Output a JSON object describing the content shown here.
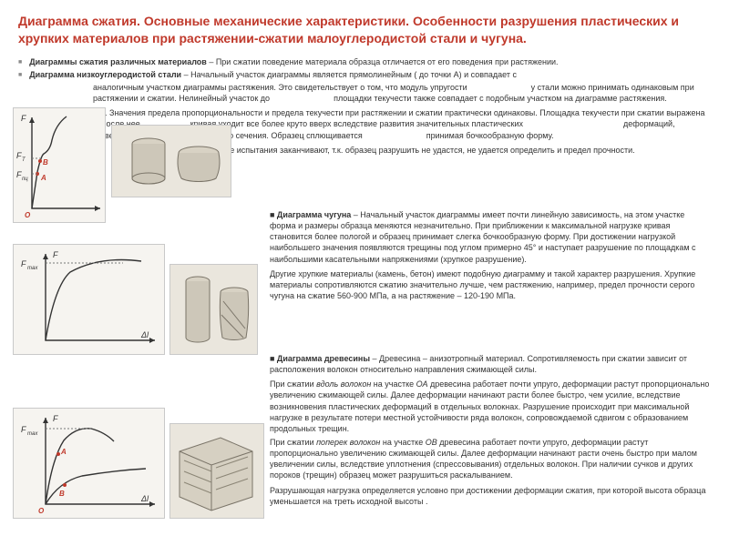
{
  "title": "Диаграмма сжатия. Основные механические характеристики. Особенности разрушения пластических и хрупких материалов при растяжении-сжатии малоуглеродистой стали и чугуна.",
  "p1_lead": "Диаграммы сжатия различных материалов",
  "p1_rest": " – При сжатии поведение материала образца отличается от его поведения при растяжении.",
  "p2_lead": "Диаграмма низкоуглеродистой стали",
  "p2_rest": " – Начальный участок диаграммы является прямолинейным ( до точки А) и совпадает с ",
  "body1": "аналогичным участком диаграммы растяжения. Это свидетельствует о том, что модуль упругости                            у стали можно принимать одинаковым при растяжении и сжатии. Нелинейный участок до                            площадки текучести также совпадает с подобным участком на диаграмме растяжения.",
  "body2": "                          . Значения предела пропорциональности и предела текучести при растяжении и сжатии практически одинаковы. Площадка текучести при сжатии выражена очень слабо и после нее                      кривая уходит все более круто вверх вследствие развития значительных пластических                                            деформаций, приводящих к увеличению площади поперечного сечения. Образец сплющивается                            принимая бочкообразную форму.",
  "body3": "При определенной нагрузке испытания заканчивают, т.к. образец разрушить не удастся, не удается определить и предел прочности.",
  "chugun_lead": "■  Диаграмма чугуна",
  "chugun": " – Начальный участок диаграммы имеет почти линейную зависимость, на этом участке форма и размеры образца меняются незначительно. При приближении к максимальной нагрузке кривая становится более пологой и образец принимает слегка бочкообразную форму. При достижении нагрузкой наибольшего значения появляются трещины под углом примерно 45° и наступает разрушение по площадкам с наибольшими касательными напряжениями (хрупкое разрушение).",
  "chugun2": "Другие хрупкие материалы (камень, бетон) имеют подобную диаграмму и такой характер разрушения. Хрупкие материалы сопротивляются сжатию значительно лучше, чем растяжению, например, предел прочности серого чугуна на сжатие 560-900 МПа, а на растяжение – 120-190 МПа.",
  "wood_lead": "■ Диаграмма древесины",
  "wood": " – Древесина – анизотропный материал. Сопротивляемость при сжатии зависит от расположения волокон относительно направления сжимающей силы.",
  "wood2": "При сжатии вдоль волокон на участке ОА древесина работает почти упруго, деформации растут пропорционально увеличению сжимающей силы. Далее деформации начинают расти более быстро, чем усилие, вследствие возникновения пластических деформаций в отдельных волокнах. Разрушение происходит при максимальной нагрузке в результате потери местной устойчивости ряда волокон, сопровождаемой сдвигом  с образованием продольных трещин.",
  "wood3": "При сжатии поперек волокон на участке ОВ древесина работает почти упруго, деформации растут пропорционально увеличению сжимающей силы. Далее деформации начинают расти очень быстро при малом увеличении силы, вследствие уплотнения (спрессовывания) отдельных волокон. При наличии сучков и других пороков (трещин) образец может разрушиться раскалыванием.",
  "wood4": "Разрушающая нагрузка определяется условно при достижении деформации сжатия, при которой высота образца уменьшается на треть исходной высоты .",
  "axis_F": "F",
  "axis_dl": "Δl",
  "Fmax": "F",
  "Fmax_sub": "max",
  "FT": "F",
  "FT_sub": "Т",
  "Fpc": "F",
  "Fpc_sub": "пц",
  "O": "O",
  "A": "А",
  "B": "В"
}
